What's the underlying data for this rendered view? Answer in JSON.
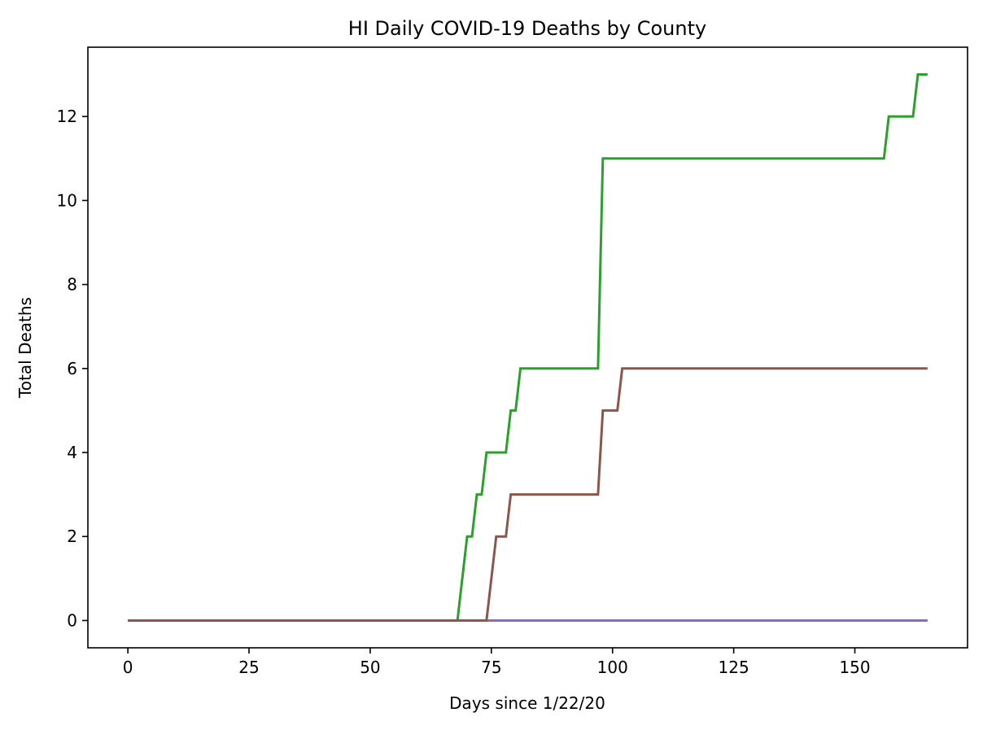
{
  "chart_data": {
    "type": "line",
    "title": "HI Daily COVID-19 Deaths by County",
    "xlabel": "Days since 1/22/20",
    "ylabel": "Total Deaths",
    "xlim": [
      -8.25,
      173.25
    ],
    "ylim": [
      -0.65,
      13.65
    ],
    "xticks": [
      0,
      25,
      50,
      75,
      100,
      125,
      150
    ],
    "yticks": [
      0,
      2,
      4,
      6,
      8,
      10,
      12
    ],
    "grid": false,
    "legend": "none",
    "series": [
      {
        "color": "#9467bd",
        "x": [
          0,
          165
        ],
        "y": [
          0,
          0
        ]
      },
      {
        "color": "#2ca02c",
        "x": [
          0,
          68,
          70,
          71,
          72,
          73,
          74,
          78,
          79,
          80,
          81,
          97,
          98,
          156,
          157,
          162,
          163,
          165
        ],
        "y": [
          0,
          0,
          2,
          2,
          3,
          3,
          4,
          4,
          5,
          5,
          6,
          6,
          11,
          11,
          12,
          12,
          13,
          13
        ]
      },
      {
        "color": "#8c564b",
        "x": [
          0,
          74,
          76,
          78,
          79,
          97,
          98,
          101,
          102,
          165
        ],
        "y": [
          0,
          0,
          2,
          2,
          3,
          3,
          5,
          5,
          6,
          6
        ]
      }
    ]
  }
}
